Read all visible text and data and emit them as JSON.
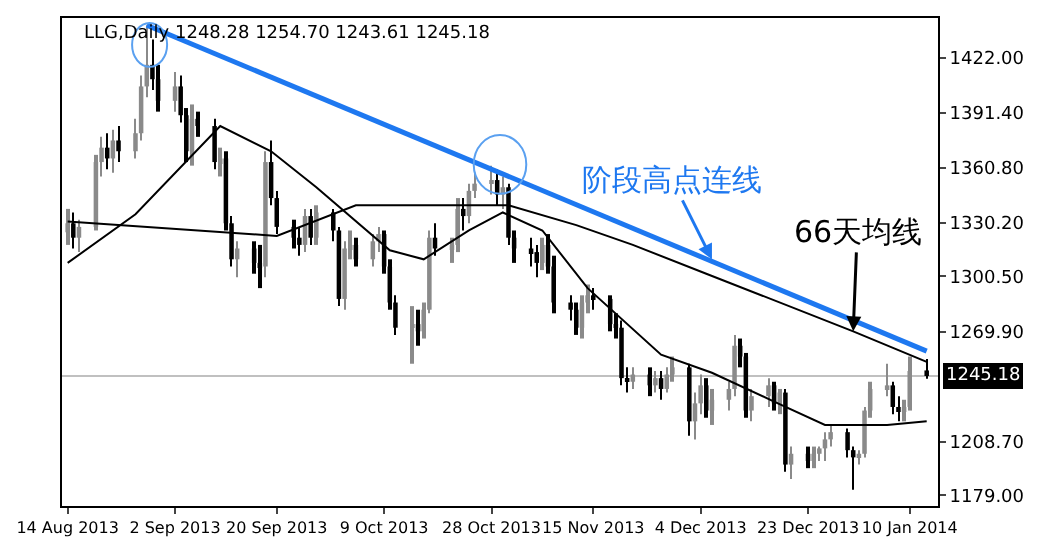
{
  "chart_data": {
    "type": "candlestick",
    "title": "LLG,Daily 1248.28 1254.70 1243.61 1245.18",
    "x": [
      "2013-08-14",
      "2013-08-15",
      "2013-08-16",
      "2013-08-19",
      "2013-08-20",
      "2013-08-21",
      "2013-08-22",
      "2013-08-23",
      "2013-08-26",
      "2013-08-27",
      "2013-08-28",
      "2013-08-29",
      "2013-08-30",
      "2013-09-02",
      "2013-09-03",
      "2013-09-04",
      "2013-09-05",
      "2013-09-06",
      "2013-09-09",
      "2013-09-10",
      "2013-09-11",
      "2013-09-12",
      "2013-09-13",
      "2013-09-16",
      "2013-09-17",
      "2013-09-18",
      "2013-09-19",
      "2013-09-20",
      "2013-09-23",
      "2013-09-24",
      "2013-09-25",
      "2013-09-26",
      "2013-09-27",
      "2013-09-30",
      "2013-10-01",
      "2013-10-02",
      "2013-10-03",
      "2013-10-04",
      "2013-10-07",
      "2013-10-08",
      "2013-10-09",
      "2013-10-10",
      "2013-10-11",
      "2013-10-14",
      "2013-10-15",
      "2013-10-16",
      "2013-10-17",
      "2013-10-18",
      "2013-10-21",
      "2013-10-22",
      "2013-10-23",
      "2013-10-24",
      "2013-10-25",
      "2013-10-28",
      "2013-10-29",
      "2013-10-30",
      "2013-10-31",
      "2013-11-01",
      "2013-11-04",
      "2013-11-05",
      "2013-11-06",
      "2013-11-07",
      "2013-11-08",
      "2013-11-11",
      "2013-11-12",
      "2013-11-13",
      "2013-11-14",
      "2013-11-15",
      "2013-11-18",
      "2013-11-19",
      "2013-11-20",
      "2013-11-21",
      "2013-11-22",
      "2013-11-25",
      "2013-11-26",
      "2013-11-27",
      "2013-11-28",
      "2013-11-29",
      "2013-12-02",
      "2013-12-03",
      "2013-12-04",
      "2013-12-05",
      "2013-12-06",
      "2013-12-09",
      "2013-12-10",
      "2013-12-11",
      "2013-12-12",
      "2013-12-13",
      "2013-12-16",
      "2013-12-17",
      "2013-12-18",
      "2013-12-19",
      "2013-12-20",
      "2013-12-23",
      "2013-12-24",
      "2013-12-25",
      "2013-12-26",
      "2013-12-27",
      "2013-12-30",
      "2013-12-31",
      "2014-01-01",
      "2014-01-02",
      "2014-01-03",
      "2014-01-06",
      "2014-01-07",
      "2014-01-08",
      "2014-01-09",
      "2014-01-10",
      "2014-01-13"
    ],
    "ohlc": [
      [
        1325,
        1338,
        1318,
        1330
      ],
      [
        1330,
        1336,
        1316,
        1322
      ],
      [
        1322,
        1332,
        1314,
        1328
      ],
      [
        1328,
        1368,
        1326,
        1364
      ],
      [
        1364,
        1378,
        1356,
        1372
      ],
      [
        1372,
        1380,
        1360,
        1366
      ],
      [
        1366,
        1382,
        1358,
        1376
      ],
      [
        1376,
        1384,
        1364,
        1370
      ],
      [
        1370,
        1388,
        1366,
        1380
      ],
      [
        1380,
        1412,
        1376,
        1406
      ],
      [
        1406,
        1440,
        1400,
        1418
      ],
      [
        1418,
        1432,
        1404,
        1410
      ],
      [
        1410,
        1418,
        1392,
        1398
      ],
      [
        1398,
        1414,
        1392,
        1406
      ],
      [
        1406,
        1412,
        1386,
        1390
      ],
      [
        1390,
        1394,
        1364,
        1370
      ],
      [
        1370,
        1396,
        1362,
        1388
      ],
      [
        1388,
        1392,
        1378,
        1384
      ],
      [
        1384,
        1388,
        1360,
        1364
      ],
      [
        1364,
        1372,
        1356,
        1366
      ],
      [
        1366,
        1370,
        1326,
        1330
      ],
      [
        1330,
        1334,
        1306,
        1310
      ],
      [
        1310,
        1320,
        1300,
        1316
      ],
      [
        1316,
        1320,
        1302,
        1308
      ],
      [
        1308,
        1318,
        1294,
        1306
      ],
      [
        1306,
        1370,
        1300,
        1364
      ],
      [
        1364,
        1376,
        1340,
        1344
      ],
      [
        1344,
        1348,
        1324,
        1328
      ],
      [
        1328,
        1332,
        1316,
        1322
      ],
      [
        1322,
        1328,
        1312,
        1318
      ],
      [
        1318,
        1338,
        1314,
        1334
      ],
      [
        1334,
        1338,
        1318,
        1322
      ],
      [
        1322,
        1340,
        1318,
        1336
      ],
      [
        1336,
        1338,
        1320,
        1326
      ],
      [
        1326,
        1328,
        1284,
        1288
      ],
      [
        1288,
        1320,
        1282,
        1316
      ],
      [
        1316,
        1326,
        1310,
        1318
      ],
      [
        1318,
        1322,
        1306,
        1310
      ],
      [
        1310,
        1324,
        1306,
        1320
      ],
      [
        1320,
        1328,
        1314,
        1324
      ],
      [
        1324,
        1326,
        1302,
        1306
      ],
      [
        1306,
        1310,
        1282,
        1286
      ],
      [
        1286,
        1290,
        1268,
        1272
      ],
      [
        1272,
        1284,
        1252,
        1274
      ],
      [
        1274,
        1282,
        1262,
        1270
      ],
      [
        1270,
        1286,
        1266,
        1282
      ],
      [
        1282,
        1326,
        1280,
        1322
      ],
      [
        1322,
        1330,
        1312,
        1316
      ],
      [
        1316,
        1322,
        1308,
        1318
      ],
      [
        1318,
        1344,
        1314,
        1338
      ],
      [
        1338,
        1344,
        1326,
        1334
      ],
      [
        1334,
        1352,
        1330,
        1348
      ],
      [
        1348,
        1358,
        1344,
        1352
      ],
      [
        1352,
        1362,
        1346,
        1354
      ],
      [
        1354,
        1360,
        1340,
        1346
      ],
      [
        1346,
        1356,
        1338,
        1350
      ],
      [
        1350,
        1352,
        1318,
        1322
      ],
      [
        1322,
        1326,
        1308,
        1316
      ],
      [
        1316,
        1322,
        1306,
        1314
      ],
      [
        1314,
        1318,
        1300,
        1308
      ],
      [
        1308,
        1322,
        1304,
        1318
      ],
      [
        1318,
        1324,
        1302,
        1306
      ],
      [
        1306,
        1312,
        1280,
        1286
      ],
      [
        1286,
        1290,
        1276,
        1282
      ],
      [
        1282,
        1286,
        1268,
        1272
      ],
      [
        1272,
        1290,
        1266,
        1286
      ],
      [
        1286,
        1296,
        1280,
        1290
      ],
      [
        1290,
        1294,
        1282,
        1288
      ],
      [
        1288,
        1290,
        1270,
        1274
      ],
      [
        1274,
        1280,
        1266,
        1272
      ],
      [
        1272,
        1276,
        1240,
        1244
      ],
      [
        1244,
        1250,
        1236,
        1242
      ],
      [
        1242,
        1250,
        1238,
        1246
      ],
      [
        1246,
        1250,
        1234,
        1240
      ],
      [
        1240,
        1248,
        1236,
        1244
      ],
      [
        1244,
        1248,
        1232,
        1238
      ],
      [
        1238,
        1250,
        1236,
        1246
      ],
      [
        1246,
        1256,
        1242,
        1250
      ],
      [
        1250,
        1252,
        1212,
        1220
      ],
      [
        1220,
        1236,
        1210,
        1230
      ],
      [
        1230,
        1246,
        1224,
        1240
      ],
      [
        1240,
        1244,
        1222,
        1226
      ],
      [
        1226,
        1238,
        1218,
        1232
      ],
      [
        1232,
        1242,
        1226,
        1238
      ],
      [
        1238,
        1268,
        1234,
        1262
      ],
      [
        1262,
        1266,
        1250,
        1256
      ],
      [
        1256,
        1258,
        1222,
        1226
      ],
      [
        1226,
        1238,
        1220,
        1234
      ],
      [
        1234,
        1244,
        1228,
        1240
      ],
      [
        1240,
        1242,
        1226,
        1230
      ],
      [
        1230,
        1238,
        1224,
        1236
      ],
      [
        1236,
        1238,
        1192,
        1196
      ],
      [
        1196,
        1206,
        1188,
        1202
      ],
      [
        1202,
        1206,
        1194,
        1198
      ],
      [
        1198,
        1206,
        1194,
        1202
      ],
      [
        1202,
        1206,
        1198,
        1205
      ],
      [
        1205,
        1214,
        1198,
        1210
      ],
      [
        1210,
        1218,
        1206,
        1214
      ],
      [
        1214,
        1216,
        1200,
        1204
      ],
      [
        1204,
        1206,
        1182,
        1200
      ],
      [
        1200,
        1204,
        1196,
        1202
      ],
      [
        1202,
        1228,
        1200,
        1226
      ],
      [
        1226,
        1242,
        1222,
        1238
      ],
      [
        1238,
        1252,
        1234,
        1240
      ],
      [
        1240,
        1242,
        1224,
        1228
      ],
      [
        1228,
        1234,
        1220,
        1226
      ],
      [
        1226,
        1232,
        1220,
        1228
      ],
      [
        1228,
        1256,
        1226,
        1248
      ],
      [
        1248.28,
        1254.7,
        1243.61,
        1245.18
      ]
    ],
    "series": [
      {
        "type": "line",
        "color": "#000000",
        "x": [
          "2013-08-14",
          "2013-08-26",
          "2013-09-10",
          "2013-09-19",
          "2013-09-27",
          "2013-10-10",
          "2013-10-16",
          "2013-10-24",
          "2013-10-30",
          "2013-11-06",
          "2013-11-14",
          "2013-11-27",
          "2013-12-06",
          "2013-12-17",
          "2013-12-26",
          "2014-01-06",
          "2014-01-13"
        ],
        "values": [
          1308,
          1335,
          1384,
          1370,
          1350,
          1315,
          1310,
          1326,
          1336,
          1326,
          1294,
          1257,
          1247,
          1231,
          1218,
          1218,
          1220
        ]
      },
      {
        "type": "line",
        "color": "#000000",
        "x": [
          "2013-08-14",
          "2013-09-20",
          "2013-10-04",
          "2013-10-31",
          "2013-11-12",
          "2013-11-22",
          "2013-12-05",
          "2013-12-31",
          "2014-01-13"
        ],
        "values": [
          1331,
          1323,
          1340,
          1340,
          1329,
          1318,
          1302,
          1270,
          1253
        ]
      },
      {
        "type": "line",
        "color": "#1e78f0",
        "x": [
          "2013-08-28",
          "2014-01-13"
        ],
        "values": [
          1440,
          1259
        ]
      }
    ],
    "annotations": [
      {
        "text": "阶段高点连线",
        "x": "2013-12-06",
        "y": 1310
      },
      {
        "text": "66天均线",
        "x": "2013-12-31",
        "y": 1270
      }
    ],
    "ref_lines": [
      {
        "axis": "y",
        "value": 1245.18,
        "label": "1245.18",
        "color": "#c0c0c0"
      }
    ],
    "xlim": [
      "2013-08-13",
      "2014-01-15"
    ],
    "xticks": [
      {
        "value": "2013-08-14",
        "label": "14 Aug 2013"
      },
      {
        "value": "2013-09-02",
        "label": "2 Sep 2013"
      },
      {
        "value": "2013-09-20",
        "label": "20 Sep 2013"
      },
      {
        "value": "2013-10-09",
        "label": "9 Oct 2013"
      },
      {
        "value": "2013-10-28",
        "label": "28 Oct 2013"
      },
      {
        "value": "2013-11-15",
        "label": "15 Nov 2013"
      },
      {
        "value": "2013-12-04",
        "label": "4 Dec 2013"
      },
      {
        "value": "2013-12-23",
        "label": "23 Dec 2013"
      },
      {
        "value": "2014-01-10",
        "label": "10 Jan 2014"
      }
    ],
    "ylim": [
      1173,
      1444
    ],
    "yticks": [
      {
        "value": 1422,
        "label": "1422.00"
      },
      {
        "value": 1391.4,
        "label": "1391.40"
      },
      {
        "value": 1360.8,
        "label": "1360.80"
      },
      {
        "value": 1330.2,
        "label": "1330.20"
      },
      {
        "value": 1300.5,
        "label": "1300.50"
      },
      {
        "value": 1269.9,
        "label": "1269.90"
      },
      {
        "value": 1208.7,
        "label": "1208.70"
      },
      {
        "value": 1179,
        "label": "1179.00"
      }
    ]
  }
}
